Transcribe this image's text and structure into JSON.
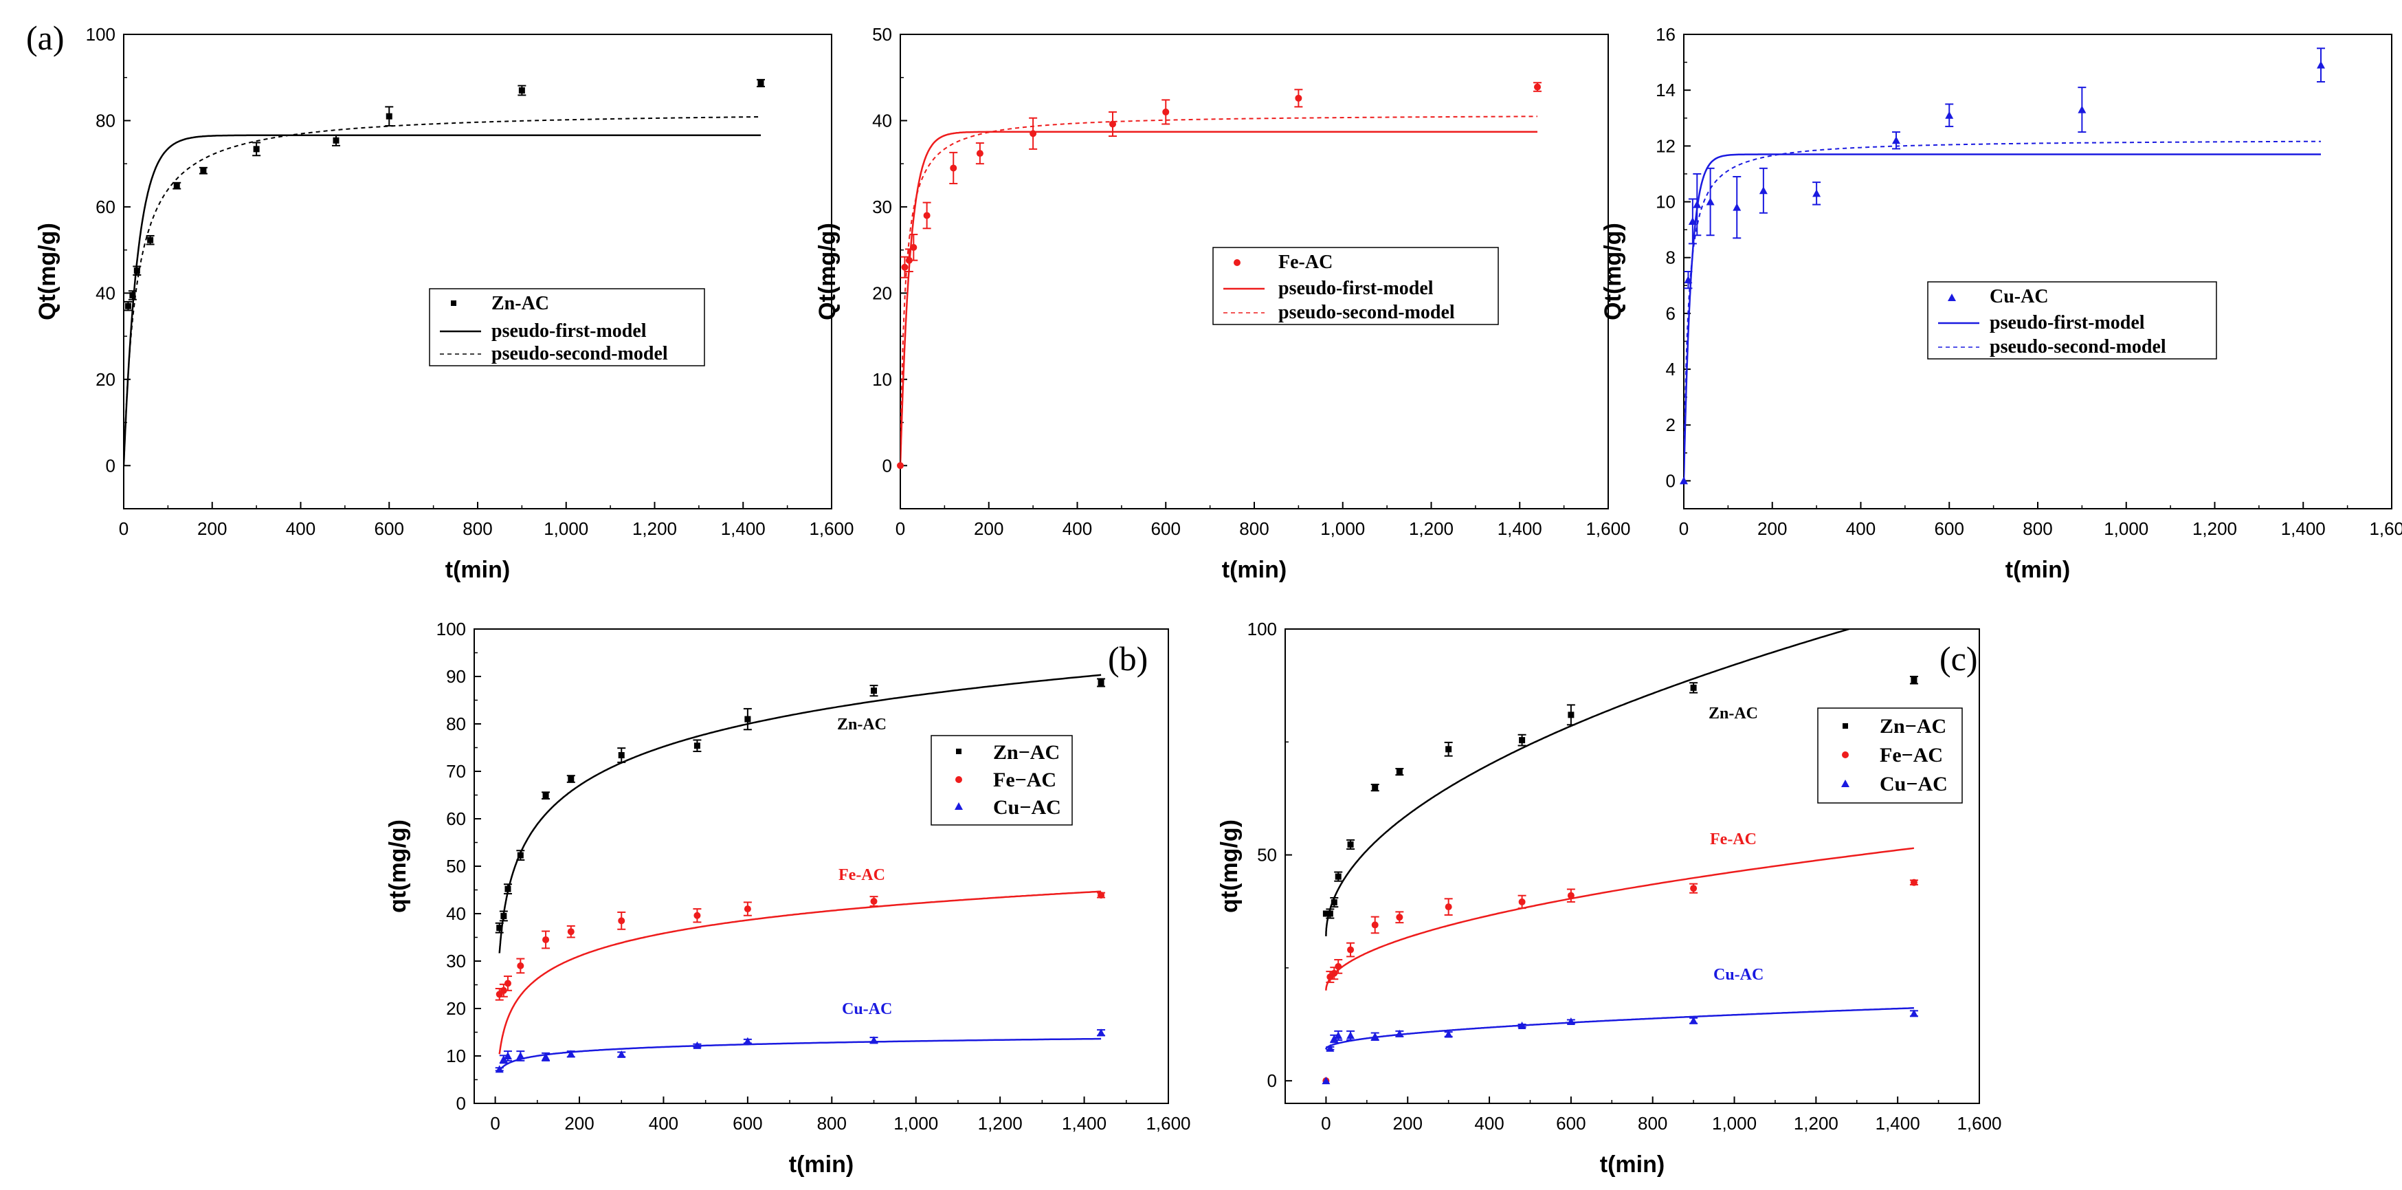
{
  "figure": {
    "panel_labels": [
      "(a)",
      "(b)",
      "(c)"
    ]
  },
  "colors": {
    "zn": "#000000",
    "fe": "#ee1c1c",
    "cu": "#1a1ae0"
  },
  "chart_data": [
    {
      "id": "a1",
      "type": "scatter",
      "panel": "(a)",
      "xlabel": "t(min)",
      "ylabel": "Qt(mg/g)",
      "xlim": [
        0,
        1600
      ],
      "ylim": [
        -10,
        100
      ],
      "xticks": [
        0,
        200,
        400,
        600,
        800,
        1000,
        1200,
        1400,
        1600
      ],
      "xtick_labels": [
        "0",
        "200",
        "400",
        "600",
        "800",
        "1,000",
        "1,200",
        "1,400",
        "1,600"
      ],
      "yticks": [
        0,
        20,
        40,
        60,
        80,
        100
      ],
      "ytick_labels": [
        "0",
        "20",
        "40",
        "60",
        "80",
        "100"
      ],
      "legend": [
        "Zn-AC",
        "pseudo-first-model",
        "pseudo-second-model"
      ],
      "series": [
        {
          "name": "Zn-AC",
          "color": "#000000",
          "marker": "square",
          "x": [
            10,
            20,
            30,
            60,
            120,
            180,
            300,
            480,
            600,
            900,
            1440
          ],
          "y": [
            37,
            39.5,
            45.2,
            52.3,
            64.9,
            68.4,
            73.4,
            75.4,
            81,
            87,
            88.7
          ],
          "err": [
            1,
            1,
            1,
            1,
            0.7,
            0.7,
            1.5,
            1.2,
            2.2,
            1.1,
            0.8
          ]
        }
      ],
      "fits": [
        {
          "name": "pseudo-first-model",
          "model": "pfo",
          "qe": 76.6,
          "k": 0.032,
          "color": "#000000",
          "dash": ""
        },
        {
          "name": "pseudo-second-model",
          "model": "pso",
          "qe": 82.5,
          "k": 0.00042,
          "color": "#000000",
          "dash": "6,5"
        }
      ]
    },
    {
      "id": "a2",
      "type": "scatter",
      "panel": "(a)",
      "xlabel": "t(min)",
      "ylabel": "Qt(mg/g)",
      "xlim": [
        0,
        1600
      ],
      "ylim": [
        -5,
        50
      ],
      "xticks": [
        0,
        200,
        400,
        600,
        800,
        1000,
        1200,
        1400,
        1600
      ],
      "xtick_labels": [
        "0",
        "200",
        "400",
        "600",
        "800",
        "1,000",
        "1,200",
        "1,400",
        "1,600"
      ],
      "yticks": [
        0,
        10,
        20,
        30,
        40,
        50
      ],
      "ytick_labels": [
        "0",
        "10",
        "20",
        "30",
        "40",
        "50"
      ],
      "legend": [
        "Fe-AC",
        "pseudo-first-model",
        "pseudo-second-model"
      ],
      "series": [
        {
          "name": "Fe-AC",
          "color": "#ee1c1c",
          "marker": "circle",
          "x": [
            0,
            10,
            20,
            30,
            60,
            120,
            180,
            300,
            480,
            600,
            900,
            1440
          ],
          "y": [
            0,
            23,
            23.8,
            25.3,
            29,
            34.5,
            36.2,
            38.5,
            39.6,
            41,
            42.6,
            43.9
          ],
          "err": [
            0,
            1.2,
            1.3,
            1.5,
            1.5,
            1.8,
            1.2,
            1.8,
            1.4,
            1.4,
            1,
            0.5
          ]
        }
      ],
      "fits": [
        {
          "name": "pseudo-first-model",
          "model": "pfo",
          "qe": 38.7,
          "k": 0.045,
          "color": "#ee1c1c",
          "dash": ""
        },
        {
          "name": "pseudo-second-model",
          "model": "pso",
          "qe": 40.8,
          "k": 0.0022,
          "color": "#ee1c1c",
          "dash": "6,5"
        }
      ]
    },
    {
      "id": "a3",
      "type": "scatter",
      "panel": "(a)",
      "xlabel": "t(min)",
      "ylabel": "Qt(mg/g)",
      "xlim": [
        0,
        1600
      ],
      "ylim": [
        -1,
        16
      ],
      "xticks": [
        0,
        200,
        400,
        600,
        800,
        1000,
        1200,
        1400,
        1600
      ],
      "xtick_labels": [
        "0",
        "200",
        "400",
        "600",
        "800",
        "1,000",
        "1,200",
        "1,400",
        "1,600"
      ],
      "yticks": [
        0,
        2,
        4,
        6,
        8,
        10,
        12,
        14,
        16
      ],
      "ytick_labels": [
        "0",
        "2",
        "4",
        "6",
        "8",
        "10",
        "12",
        "14",
        "16"
      ],
      "legend": [
        "Cu-AC",
        "pseudo-first-model",
        "pseudo-second-model"
      ],
      "series": [
        {
          "name": "Cu-AC",
          "color": "#1a1ae0",
          "marker": "triangle",
          "x": [
            0,
            10,
            20,
            30,
            60,
            120,
            180,
            300,
            480,
            600,
            900,
            1440
          ],
          "y": [
            0,
            7.2,
            9.3,
            9.9,
            10,
            9.8,
            10.4,
            10.3,
            12.2,
            13.1,
            13.3,
            14.9
          ],
          "err": [
            0,
            0.3,
            0.8,
            1.1,
            1.2,
            1.1,
            0.8,
            0.4,
            0.3,
            0.4,
            0.8,
            0.6
          ]
        }
      ],
      "fits": [
        {
          "name": "pseudo-first-model",
          "model": "pfo",
          "qe": 11.7,
          "k": 0.06,
          "color": "#1a1ae0",
          "dash": ""
        },
        {
          "name": "pseudo-second-model",
          "model": "pso",
          "qe": 12.25,
          "k": 0.008,
          "color": "#1a1ae0",
          "dash": "6,5"
        }
      ]
    },
    {
      "id": "b",
      "type": "scatter",
      "panel": "(b)",
      "xlabel": "t(min)",
      "ylabel": "qt(mg/g)",
      "xlim": [
        -50,
        1600
      ],
      "ylim": [
        0,
        100
      ],
      "xticks": [
        0,
        200,
        400,
        600,
        800,
        1000,
        1200,
        1400,
        1600
      ],
      "xtick_labels": [
        "0",
        "200",
        "400",
        "600",
        "800",
        "1,000",
        "1,200",
        "1,400",
        "1,600"
      ],
      "yticks": [
        0,
        10,
        20,
        30,
        40,
        50,
        60,
        70,
        80,
        90,
        100
      ],
      "ytick_labels": [
        "0",
        "10",
        "20",
        "30",
        "40",
        "50",
        "60",
        "70",
        "80",
        "90",
        "100"
      ],
      "legend": [
        "Zn−AC",
        "Fe−AC",
        "Cu−AC"
      ],
      "annotations": [
        "Zn-AC",
        "Fe-AC",
        "Cu-AC"
      ],
      "series": [
        {
          "name": "Zn-AC",
          "color": "#000000",
          "marker": "square",
          "x": [
            10,
            20,
            30,
            60,
            120,
            180,
            300,
            480,
            600,
            900,
            1440
          ],
          "y": [
            37,
            39.5,
            45.2,
            52.3,
            64.9,
            68.4,
            73.4,
            75.4,
            81,
            87,
            88.7
          ],
          "err": [
            1,
            1,
            1,
            1,
            0.7,
            0.7,
            1.5,
            1.2,
            2.2,
            1.1,
            0.8
          ]
        },
        {
          "name": "Fe-AC",
          "color": "#ee1c1c",
          "marker": "circle",
          "x": [
            10,
            20,
            30,
            60,
            120,
            180,
            300,
            480,
            600,
            900,
            1440
          ],
          "y": [
            23,
            23.8,
            25.3,
            29,
            34.5,
            36.2,
            38.5,
            39.6,
            41,
            42.6,
            43.9
          ],
          "err": [
            1.2,
            1.3,
            1.5,
            1.5,
            1.8,
            1.2,
            1.8,
            1.4,
            1.4,
            1,
            0.5
          ]
        },
        {
          "name": "Cu-AC",
          "color": "#1a1ae0",
          "marker": "triangle",
          "x": [
            10,
            20,
            30,
            60,
            120,
            180,
            300,
            480,
            600,
            900,
            1440
          ],
          "y": [
            7.2,
            9.3,
            10,
            10,
            9.8,
            10.4,
            10.3,
            12.2,
            13.1,
            13.3,
            14.9
          ],
          "err": [
            0.3,
            0.8,
            1,
            1,
            0.8,
            0.6,
            0.5,
            0.3,
            0.4,
            0.6,
            0.6
          ]
        }
      ],
      "fits": [
        {
          "name": "Zn-AC",
          "model": "elovich",
          "a": 4.5,
          "b": 11.8,
          "xmin": 10,
          "color": "#000000",
          "dash": ""
        },
        {
          "name": "Fe-AC",
          "model": "elovich",
          "a": -5.5,
          "b": 6.9,
          "xmin": 10,
          "color": "#ee1c1c",
          "dash": ""
        },
        {
          "name": "Cu-AC",
          "model": "elovich",
          "a": 3.8,
          "b": 1.35,
          "xmin": 10,
          "color": "#1a1ae0",
          "dash": ""
        }
      ]
    },
    {
      "id": "c",
      "type": "scatter",
      "panel": "(c)",
      "xlabel": "t(min)",
      "ylabel": "qt(mg/g)",
      "xlim": [
        -100,
        1600
      ],
      "ylim": [
        -5,
        100
      ],
      "xticks": [
        0,
        200,
        400,
        600,
        800,
        1000,
        1200,
        1400,
        1600
      ],
      "xtick_labels": [
        "0",
        "200",
        "400",
        "600",
        "800",
        "1,000",
        "1,200",
        "1,400",
        "1,600"
      ],
      "yticks": [
        0,
        50,
        100
      ],
      "ytick_labels": [
        "0",
        "50",
        "100"
      ],
      "legend": [
        "Zn−AC",
        "Fe−AC",
        "Cu−AC"
      ],
      "annotations": [
        "Zn-AC",
        "Fe-AC",
        "Cu-AC"
      ],
      "series": [
        {
          "name": "Zn-AC",
          "color": "#000000",
          "marker": "square",
          "x": [
            0,
            10,
            20,
            30,
            60,
            120,
            180,
            300,
            480,
            600,
            900,
            1440
          ],
          "y": [
            37,
            37,
            39.5,
            45.2,
            52.3,
            64.9,
            68.4,
            73.4,
            75.4,
            81,
            87,
            88.7
          ],
          "err": [
            0,
            1,
            1,
            1,
            1,
            0.7,
            0.7,
            1.5,
            1.2,
            2.2,
            1.1,
            0.8
          ]
        },
        {
          "name": "Fe-AC",
          "color": "#ee1c1c",
          "marker": "circle",
          "x": [
            0,
            10,
            20,
            30,
            60,
            120,
            180,
            300,
            480,
            600,
            900,
            1440
          ],
          "y": [
            0,
            23,
            23.8,
            25.3,
            29,
            34.5,
            36.2,
            38.5,
            39.6,
            41,
            42.6,
            43.9
          ],
          "err": [
            0,
            1.2,
            1.3,
            1.5,
            1.5,
            1.8,
            1.2,
            1.8,
            1.4,
            1.4,
            1,
            0.5
          ]
        },
        {
          "name": "Cu-AC",
          "color": "#1a1ae0",
          "marker": "triangle",
          "x": [
            0,
            10,
            20,
            30,
            60,
            120,
            180,
            300,
            480,
            600,
            900,
            1440
          ],
          "y": [
            0,
            7.2,
            9.3,
            10,
            10,
            9.8,
            10.4,
            10.3,
            12.2,
            13.1,
            13.3,
            14.9
          ],
          "err": [
            0,
            0.3,
            0.8,
            1,
            1,
            0.8,
            0.6,
            0.5,
            0.3,
            0.4,
            0.6,
            0.6
          ]
        }
      ],
      "fits": [
        {
          "name": "Zn-AC",
          "model": "ipd",
          "k": 1.9,
          "c": 32,
          "xmin": 0,
          "color": "#000000",
          "dash": ""
        },
        {
          "name": "Fe-AC",
          "model": "ipd",
          "k": 0.83,
          "c": 20,
          "xmin": 0,
          "color": "#ee1c1c",
          "dash": ""
        },
        {
          "name": "Cu-AC",
          "model": "ipd",
          "k": 0.24,
          "c": 7,
          "xmin": 0,
          "color": "#1a1ae0",
          "dash": ""
        }
      ]
    }
  ]
}
